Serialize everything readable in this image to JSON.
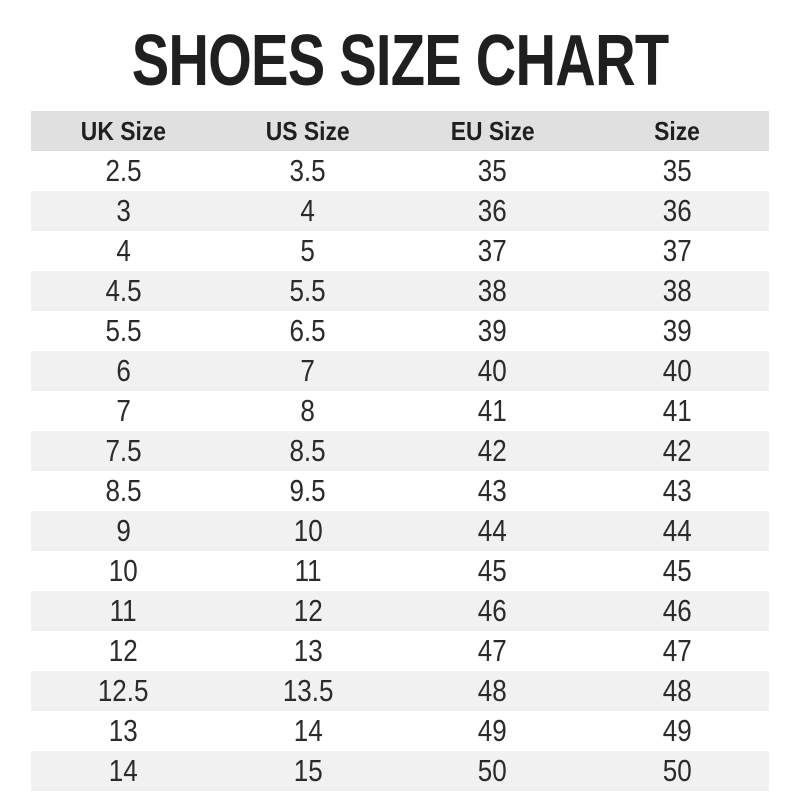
{
  "title": "SHOES SIZE CHART",
  "chart_data": {
    "type": "table",
    "title": "SHOES SIZE CHART",
    "columns": [
      "UK Size",
      "US Size",
      "EU Size",
      "Size"
    ],
    "rows": [
      [
        "2.5",
        "3.5",
        "35",
        "35"
      ],
      [
        "3",
        "4",
        "36",
        "36"
      ],
      [
        "4",
        "5",
        "37",
        "37"
      ],
      [
        "4.5",
        "5.5",
        "38",
        "38"
      ],
      [
        "5.5",
        "6.5",
        "39",
        "39"
      ],
      [
        "6",
        "7",
        "40",
        "40"
      ],
      [
        "7",
        "8",
        "41",
        "41"
      ],
      [
        "7.5",
        "8.5",
        "42",
        "42"
      ],
      [
        "8.5",
        "9.5",
        "43",
        "43"
      ],
      [
        "9",
        "10",
        "44",
        "44"
      ],
      [
        "10",
        "11",
        "45",
        "45"
      ],
      [
        "11",
        "12",
        "46",
        "46"
      ],
      [
        "12",
        "13",
        "47",
        "47"
      ],
      [
        "12.5",
        "13.5",
        "48",
        "48"
      ],
      [
        "13",
        "14",
        "49",
        "49"
      ],
      [
        "14",
        "15",
        "50",
        "50"
      ]
    ],
    "layout": {
      "zebra_striping": true,
      "header_position": "top",
      "column_alignment": "center"
    }
  },
  "colors": {
    "header_bg": "#e0e0e0",
    "alt_row_bg": "#f1f1f1",
    "title_text": "#1f1f1f",
    "header_text": "#1f1f1f",
    "data_text": "#2b2b2b",
    "page_bg": "#ffffff"
  }
}
